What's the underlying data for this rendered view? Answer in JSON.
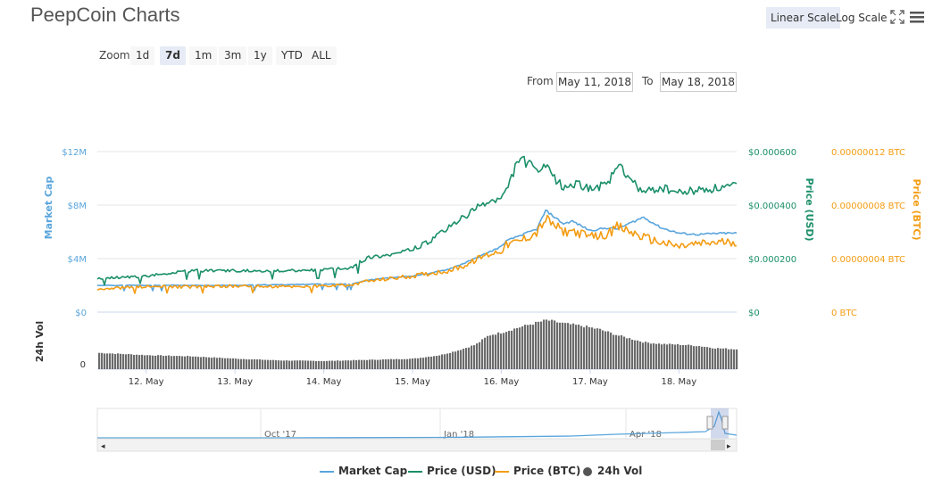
{
  "title": "PeepCoin Charts",
  "scale": {
    "linear_label": "Linear Scale",
    "log_label": "Log Scale",
    "active": "linear"
  },
  "icons": {
    "fullscreen": "fullscreen-icon",
    "menu": "hamburger-menu-icon"
  },
  "zoom": {
    "label": "Zoom",
    "buttons": [
      "1d",
      "7d",
      "1m",
      "3m",
      "1y",
      "YTD",
      "ALL"
    ],
    "active": "7d"
  },
  "range": {
    "from_label": "From",
    "from_value": "May 11, 2018",
    "to_label": "To",
    "to_value": "May 18, 2018"
  },
  "colors": {
    "market_cap": "#5aa5dc",
    "price_usd": "#1b8f6a",
    "price_btc": "#f39c12",
    "volume": "#555555",
    "navigator": "#5aa5dc"
  },
  "chart_data": {
    "type": "line",
    "x_ticks": [
      "12. May",
      "13. May",
      "14. May",
      "15. May",
      "16. May",
      "17. May",
      "18. May"
    ],
    "x_tick_days": [
      12,
      13,
      14,
      15,
      16,
      17,
      18
    ],
    "x_range": [
      11.45,
      18.65
    ],
    "axes": {
      "market_cap": {
        "label": "Market Cap",
        "ticks": [
          "$0",
          "$4M",
          "$8M",
          "$12M"
        ],
        "range": [
          0,
          12000000
        ]
      },
      "price_usd": {
        "label": "Price (USD)",
        "ticks": [
          "$0",
          "$0.000200",
          "$0.000400",
          "$0.000600"
        ],
        "range": [
          0,
          0.0006
        ]
      },
      "price_btc": {
        "label": "Price (BTC)",
        "ticks": [
          "0 BTC",
          "0.00000004 BTC",
          "0.00000008 BTC",
          "0.00000012 BTC"
        ],
        "range": [
          0,
          1.2e-07
        ]
      },
      "volume": {
        "label": "24h Vol",
        "ticks": [
          "0"
        ]
      }
    },
    "series": [
      {
        "name": "Market Cap",
        "axis": "market_cap",
        "x": [
          11.45,
          12,
          12.5,
          13,
          13.5,
          14,
          14.3,
          14.5,
          14.8,
          15,
          15.2,
          15.4,
          15.6,
          15.8,
          16,
          16.05,
          16.2,
          16.4,
          16.5,
          16.7,
          16.8,
          17,
          17.2,
          17.3,
          17.6,
          17.8,
          18,
          18.2,
          18.5,
          18.65
        ],
        "values": [
          2000000,
          2000000,
          2000000,
          2000000,
          2050000,
          2100000,
          2100000,
          2400000,
          2600000,
          2700000,
          2900000,
          3200000,
          3700000,
          4300000,
          4900000,
          5300000,
          5700000,
          6200000,
          7600000,
          6600000,
          6800000,
          6100000,
          6300000,
          6200000,
          7100000,
          6300000,
          5900000,
          5800000,
          5900000,
          5900000
        ]
      },
      {
        "name": "Price (USD)",
        "axis": "price_usd",
        "x": [
          11.45,
          12,
          12.5,
          13,
          13.5,
          14,
          14.3,
          14.5,
          14.8,
          15,
          15.2,
          15.4,
          15.6,
          15.8,
          16,
          16.05,
          16.2,
          16.4,
          16.5,
          16.7,
          16.8,
          17,
          17.2,
          17.3,
          17.6,
          17.8,
          18,
          18.2,
          18.5,
          18.65
        ],
        "values": [
          0.000125,
          0.000135,
          0.000155,
          0.000155,
          0.000155,
          0.000158,
          0.000165,
          0.000205,
          0.000218,
          0.000235,
          0.000265,
          0.000315,
          0.00036,
          0.000405,
          0.000425,
          0.000445,
          0.00058,
          0.00053,
          0.00054,
          0.000465,
          0.00048,
          0.000465,
          0.000475,
          0.00055,
          0.000445,
          0.000465,
          0.000445,
          0.000455,
          0.000465,
          0.00047
        ]
      },
      {
        "name": "Price (BTC)",
        "axis": "price_btc",
        "x": [
          11.45,
          12,
          12.5,
          13,
          13.5,
          14,
          14.3,
          14.5,
          14.8,
          15,
          15.2,
          15.4,
          15.6,
          15.8,
          16,
          16.05,
          16.2,
          16.4,
          16.5,
          16.7,
          16.8,
          17,
          17.2,
          17.3,
          17.6,
          17.8,
          18,
          18.2,
          18.5,
          18.65
        ],
        "values": [
          1.75e-08,
          1.9e-08,
          1.9e-08,
          1.95e-08,
          1.9e-08,
          1.95e-08,
          2e-08,
          2.3e-08,
          2.55e-08,
          2.7e-08,
          2.9e-08,
          3.1e-08,
          3.5e-08,
          4.2e-08,
          4.6e-08,
          5e-08,
          5.3e-08,
          5.95e-08,
          6.95e-08,
          6e-08,
          6.1e-08,
          5.6e-08,
          5.8e-08,
          6.4e-08,
          5.6e-08,
          5.2e-08,
          4.9e-08,
          5.1e-08,
          5.25e-08,
          5.25e-08
        ]
      },
      {
        "name": "24h Vol",
        "axis": "volume",
        "type": "column",
        "x": [
          11.45,
          12,
          12.5,
          13,
          13.5,
          14,
          14.5,
          15,
          15.3,
          15.5,
          15.7,
          15.85,
          16,
          16.2,
          16.4,
          16.5,
          16.7,
          16.9,
          17.1,
          17.3,
          17.6,
          17.8,
          18,
          18.2,
          18.4,
          18.65
        ],
        "values": [
          28,
          24,
          22,
          18,
          15,
          14,
          16,
          18,
          24,
          32,
          42,
          58,
          63,
          72,
          80,
          84,
          78,
          74,
          68,
          58,
          46,
          43,
          42,
          40,
          36,
          34
        ]
      }
    ],
    "navigator": {
      "labels": [
        "Oct '17",
        "Jan '18",
        "Apr '18"
      ]
    },
    "legend": [
      "Market Cap",
      "Price (USD)",
      "Price (BTC)",
      "24h Vol"
    ],
    "legend_placement": "bottom-center",
    "grid": true
  }
}
